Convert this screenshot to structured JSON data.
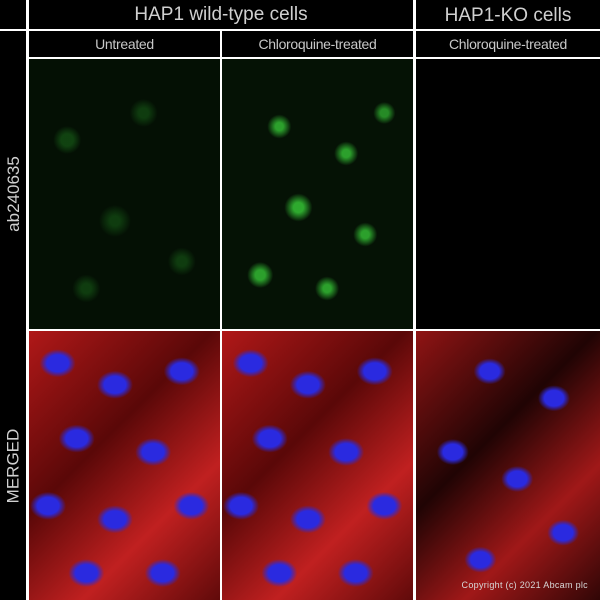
{
  "headers": {
    "group_wildtype": "HAP1 wild-type cells",
    "group_ko": "HAP1-KO cells",
    "columns": [
      "Untreated",
      "Chloroquine-treated",
      "Chloroquine-treated"
    ]
  },
  "rows": [
    "ab240635",
    "MERGED"
  ],
  "copyright": "Copyright (c) 2021 Abcam plc",
  "colors": {
    "background": "#000000",
    "divider": "#ffffff",
    "antibody_stain": "#33cc33",
    "nuclei": "#2a2ae0",
    "cytoskeleton": "#c02020"
  }
}
